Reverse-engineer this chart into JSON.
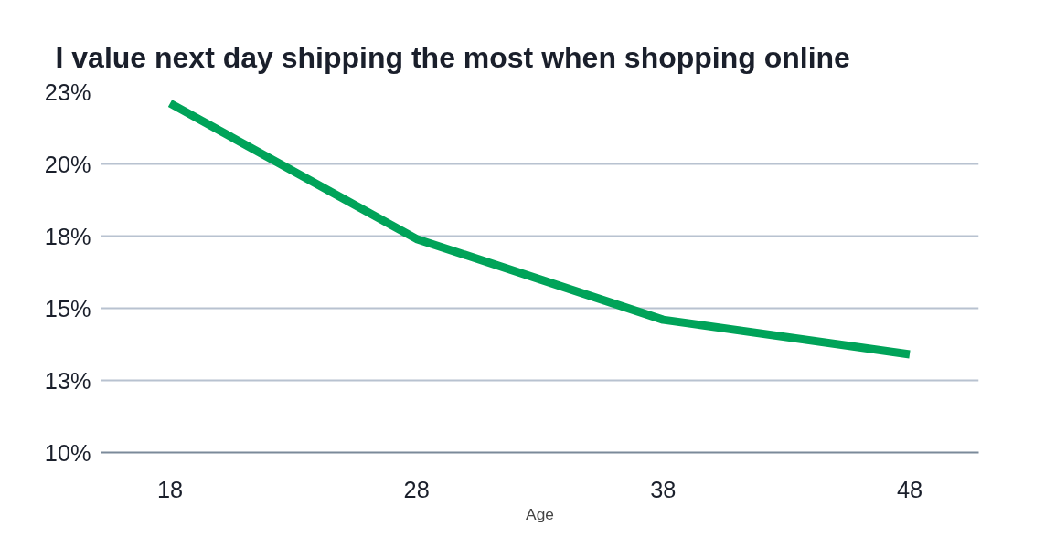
{
  "chart_data": {
    "type": "line",
    "title": "I value next day shipping the most when shopping online",
    "xlabel": "Age",
    "x": [
      18,
      28,
      38,
      48
    ],
    "series": [
      {
        "color": "#00a359",
        "values": [
          22.1,
          17.4,
          14.6,
          13.4
        ]
      }
    ],
    "xlim": [
      15.2,
      50.8
    ],
    "xticks": [
      18,
      28,
      38,
      48
    ],
    "ylim": [
      10,
      22.5
    ],
    "yticks": [
      {
        "value": 10,
        "label": "10%"
      },
      {
        "value": 12.5,
        "label": "13%"
      },
      {
        "value": 15,
        "label": "15%"
      },
      {
        "value": 17.5,
        "label": "18%"
      },
      {
        "value": 20,
        "label": "20%"
      },
      {
        "value": 22.5,
        "label": "23%"
      }
    ],
    "grid": "y",
    "marker": "none",
    "line_style": "solid"
  }
}
